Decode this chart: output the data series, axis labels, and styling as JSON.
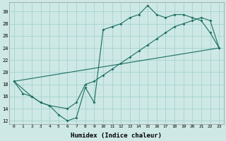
{
  "xlabel": "Humidex (Indice chaleur)",
  "background_color": "#cde8e5",
  "grid_color": "#9fcfcc",
  "line_color": "#1a6e62",
  "xlim": [
    -0.5,
    23.5
  ],
  "ylim": [
    11.5,
    31.5
  ],
  "xticks": [
    0,
    1,
    2,
    3,
    4,
    5,
    6,
    7,
    8,
    9,
    10,
    11,
    12,
    13,
    14,
    15,
    16,
    17,
    18,
    19,
    20,
    21,
    22,
    23
  ],
  "yticks": [
    12,
    14,
    16,
    18,
    20,
    22,
    24,
    26,
    28,
    30
  ],
  "line1_x": [
    0,
    1,
    2,
    3,
    4,
    5,
    6,
    7,
    8,
    9,
    10,
    11,
    12,
    13,
    14,
    15,
    16,
    17,
    18,
    19,
    20,
    21,
    22,
    23
  ],
  "line1_y": [
    18.5,
    16.5,
    16.0,
    15.0,
    14.5,
    13.0,
    12.0,
    12.5,
    17.5,
    15.0,
    27.0,
    27.5,
    28.0,
    29.0,
    29.5,
    31.0,
    29.5,
    29.0,
    29.5,
    29.5,
    29.0,
    28.5,
    26.5,
    24.0
  ],
  "line2_x": [
    0,
    2,
    3,
    4,
    6,
    7,
    8,
    9,
    10,
    11,
    12,
    13,
    14,
    15,
    16,
    17,
    18,
    19,
    20,
    21,
    22,
    23
  ],
  "line2_y": [
    18.5,
    16.0,
    15.0,
    14.5,
    14.0,
    15.0,
    18.0,
    18.5,
    19.5,
    20.5,
    21.5,
    22.5,
    23.5,
    24.5,
    25.5,
    26.5,
    27.5,
    28.0,
    28.5,
    29.0,
    28.5,
    24.0
  ],
  "line3_x": [
    0,
    23
  ],
  "line3_y": [
    18.5,
    24.0
  ]
}
